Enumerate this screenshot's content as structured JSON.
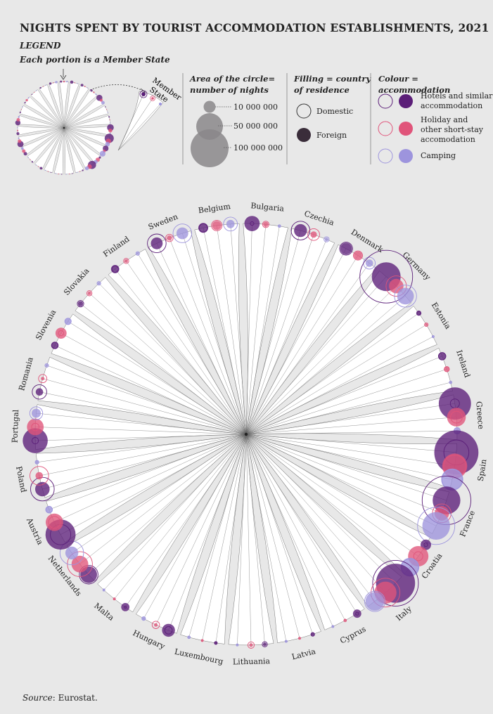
{
  "title": "NIGHTS SPENT BY TOURIST ACCOMMODATION ESTABLISHMENTS, 2021",
  "legend": {
    "heading": "LEGEND",
    "subheading": "Each portion is a Member State",
    "member_state_label_line1": "Member",
    "member_state_label_line2": "State",
    "area_title_line1": "Area of the circle=",
    "area_title_line2": "number of nights",
    "area_values": [
      "10 000 000",
      "50 000 000",
      "100 000 000"
    ],
    "filling_title_line1": "Filling  = country",
    "filling_title_line2": "of residence",
    "filling_domestic": "Domestic",
    "filling_foreign": "Foreign",
    "colour_title": "Colour  = accommodation",
    "colour_hotels_line1": "Hotels and similar",
    "colour_hotels_line2": "accommodation",
    "colour_holiday_line1": "Holiday and",
    "colour_holiday_line2": "other short-stay",
    "colour_holiday_line3": "accomodation",
    "colour_camping": "Camping"
  },
  "colors": {
    "hotels": "#5b1e78",
    "holiday": "#e0547a",
    "camping": "#9d94dd",
    "background": "#e8e8e8"
  },
  "source_prefix": "Source",
  "source_suffix": ": Eurostat.",
  "chart_data": {
    "type": "radial-bubble",
    "units": "millions of nights (estimated from circle areas)",
    "categories": [
      "Belgium",
      "Bulgaria",
      "Czechia",
      "Denmark",
      "Germany",
      "Estonia",
      "Ireland",
      "Greece",
      "Spain",
      "France",
      "Croatia",
      "Italy",
      "Cyprus",
      "Latvia",
      "Lithuania",
      "Luxembourg",
      "Hungary",
      "Malta",
      "Netherlands",
      "Austria",
      "Poland",
      "Portugal",
      "Romania",
      "Slovenia",
      "Slovakia",
      "Finland",
      "Sweden"
    ],
    "series": [
      {
        "name": "Hotels and similar accommodation",
        "residence": "Domestic",
        "values": [
          5,
          1,
          25,
          12,
          200,
          1,
          4,
          6,
          45,
          170,
          1,
          150,
          0.6,
          1,
          2,
          0.2,
          4,
          0.1,
          25,
          30,
          40,
          3,
          15,
          3,
          3,
          3,
          25
        ]
      },
      {
        "name": "Hotels and similar accommodation",
        "residence": "Foreign",
        "values": [
          7,
          17,
          12,
          10,
          60,
          2,
          4,
          75,
          140,
          55,
          8,
          110,
          5,
          1,
          1,
          1,
          12,
          5,
          20,
          65,
          15,
          45,
          4,
          4,
          2,
          5,
          10
        ]
      },
      {
        "name": "Holiday and other short-stay accomodation",
        "residence": "Domestic",
        "values": [
          8,
          3,
          10,
          6,
          30,
          1,
          2,
          10,
          35,
          25,
          6,
          60,
          0.5,
          0.3,
          3,
          0.1,
          4,
          0.3,
          45,
          10,
          25,
          4,
          5,
          2,
          2,
          2,
          4
        ]
      },
      {
        "name": "Holiday and other short-stay accomodation",
        "residence": "Foreign",
        "values": [
          6,
          2,
          3,
          5,
          15,
          0.5,
          2,
          25,
          45,
          15,
          30,
          35,
          0.3,
          0.2,
          1,
          0.2,
          1,
          0.2,
          20,
          22,
          4,
          20,
          1,
          9,
          1,
          1,
          2
        ]
      },
      {
        "name": "Camping",
        "residence": "Domestic",
        "values": [
          14,
          0.5,
          2,
          10,
          35,
          0.3,
          0.5,
          3,
          30,
          100,
          20,
          30,
          0.1,
          0.1,
          0.3,
          0.5,
          1,
          0.1,
          40,
          3,
          1,
          12,
          1,
          3,
          1,
          1,
          25
        ]
      },
      {
        "name": "Camping",
        "residence": "Foreign",
        "values": [
          5,
          0.3,
          1,
          4,
          20,
          0.2,
          0.3,
          3,
          35,
          55,
          25,
          25,
          0.1,
          0.1,
          0.2,
          0.5,
          1,
          0.1,
          12,
          4,
          1,
          6,
          0.5,
          3,
          0.5,
          0.5,
          10
        ]
      }
    ]
  }
}
